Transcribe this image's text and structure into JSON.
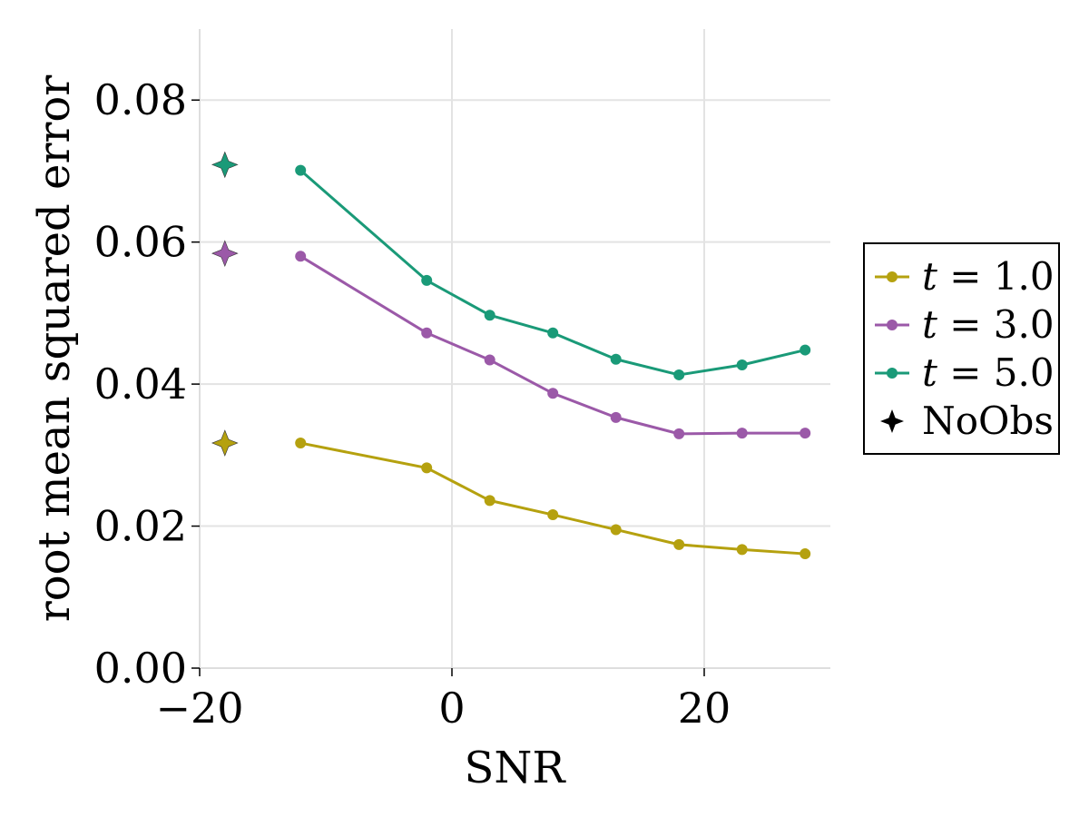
{
  "chart_data": {
    "type": "line",
    "xlabel": "SNR",
    "ylabel": "root mean squared error",
    "xlim": [
      -20,
      30
    ],
    "ylim": [
      0,
      0.09
    ],
    "xticks": [
      -20,
      0,
      20
    ],
    "xtick_labels": [
      "−20",
      "0",
      "20"
    ],
    "yticks": [
      0,
      0.02,
      0.04,
      0.06,
      0.08
    ],
    "ytick_labels": [
      "0.00",
      "0.02",
      "0.04",
      "0.06",
      "0.08"
    ],
    "grid": true,
    "legend_position": "right",
    "x": [
      -12,
      -2,
      3,
      8,
      13,
      18,
      23,
      28
    ],
    "series": [
      {
        "name": "t = 1.0",
        "var": "t",
        "eq": "=",
        "val": "1.0",
        "color": "#b5a10f",
        "values": [
          0.0317,
          0.0282,
          0.0236,
          0.0216,
          0.0195,
          0.0174,
          0.0167,
          0.0161
        ],
        "noobs": 0.0317
      },
      {
        "name": "t = 3.0",
        "var": "t",
        "eq": "=",
        "val": "3.0",
        "color": "#9b59a8",
        "values": [
          0.058,
          0.0472,
          0.0434,
          0.0387,
          0.0353,
          0.033,
          0.0331,
          0.0331
        ],
        "noobs": 0.0584
      },
      {
        "name": "t = 5.0",
        "var": "t",
        "eq": "=",
        "val": "5.0",
        "color": "#1a9a78",
        "values": [
          0.0701,
          0.0546,
          0.0497,
          0.0472,
          0.0435,
          0.0413,
          0.0427,
          0.0448
        ],
        "noobs": 0.0709
      }
    ],
    "noobs_x": -18,
    "noobs_label": "NoObs"
  }
}
